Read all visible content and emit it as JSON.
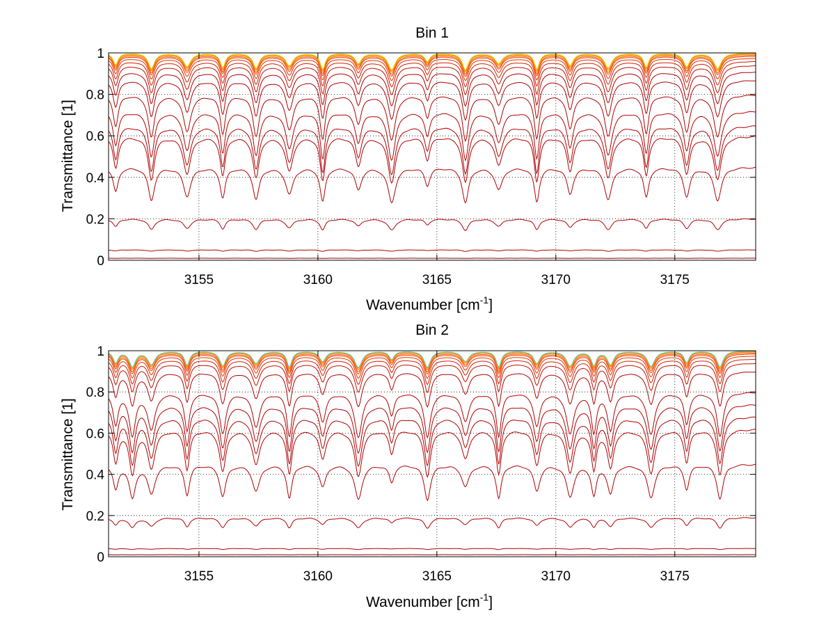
{
  "chart_data": [
    {
      "type": "line",
      "title": "Bin 1",
      "xlabel": "Wavenumber [cm",
      "xlabel_sup": "-1",
      "xlabel_close": "]",
      "ylabel": "Transmittance [1]",
      "xlim": [
        3151.2,
        3178.4
      ],
      "ylim": [
        0,
        1
      ],
      "grid": true,
      "xticks": [
        3155,
        3160,
        3165,
        3170,
        3175
      ],
      "yticks": [
        0,
        0.2,
        0.4,
        0.6,
        0.8,
        1
      ],
      "ytick_labels": [
        "0",
        "0.2",
        "0.4",
        "0.6",
        "0.8",
        "1"
      ],
      "absorption_lines": [
        3151.5,
        3153.0,
        3154.5,
        3156.0,
        3157.4,
        3158.8,
        3160.2,
        3161.7,
        3163.1,
        3164.6,
        3166.2,
        3167.6,
        3169.2,
        3170.6,
        3172.2,
        3173.8,
        3175.5,
        3176.8
      ],
      "series_baselines": [
        0.0,
        0.01,
        0.05,
        0.2,
        0.45,
        0.6,
        0.65,
        0.72,
        0.8,
        0.87,
        0.91,
        0.94,
        0.96,
        0.975,
        0.985,
        0.99,
        0.995,
        0.998,
        1.0
      ],
      "series_colors": [
        "#8b0000",
        "#8b0000",
        "#b00000",
        "#b00000",
        "#b00000",
        "#b00000",
        "#b00000",
        "#b00000",
        "#b00000",
        "#b00000",
        "#b00000",
        "#c01000",
        "#d02000",
        "#e03000",
        "#f04000",
        "#ff5a00",
        "#ff7a00",
        "#ffa000",
        "#d4d000"
      ]
    },
    {
      "type": "line",
      "title": "Bin 2",
      "xlabel": "Wavenumber [cm",
      "xlabel_sup": "-1",
      "xlabel_close": "]",
      "ylabel": "Transmittance [1]",
      "xlim": [
        3151.2,
        3178.4
      ],
      "ylim": [
        0,
        1
      ],
      "grid": true,
      "xticks": [
        3155,
        3160,
        3165,
        3170,
        3175
      ],
      "yticks": [
        0,
        0.2,
        0.4,
        0.6,
        0.8,
        1
      ],
      "ytick_labels": [
        "0",
        "0.2",
        "0.4",
        "0.6",
        "0.8",
        "1"
      ],
      "absorption_lines": [
        3151.5,
        3152.2,
        3153.0,
        3154.5,
        3156.0,
        3157.4,
        3158.8,
        3160.2,
        3161.7,
        3163.1,
        3164.6,
        3166.2,
        3167.6,
        3169.2,
        3170.6,
        3171.6,
        3172.3,
        3174.0,
        3175.5,
        3176.9
      ],
      "series_baselines": [
        0.0,
        0.01,
        0.04,
        0.19,
        0.45,
        0.62,
        0.68,
        0.74,
        0.8,
        0.9,
        0.94,
        0.96,
        0.975,
        0.985,
        0.99,
        0.995,
        0.998,
        1.0
      ],
      "series_colors": [
        "#8b0000",
        "#8b0000",
        "#b00000",
        "#b00000",
        "#b00000",
        "#b00000",
        "#b00000",
        "#b00000",
        "#b00000",
        "#b00000",
        "#c01000",
        "#d02000",
        "#e03000",
        "#f04000",
        "#ff5a00",
        "#ff7a00",
        "#ffa000",
        "#4fc8c0"
      ]
    }
  ]
}
